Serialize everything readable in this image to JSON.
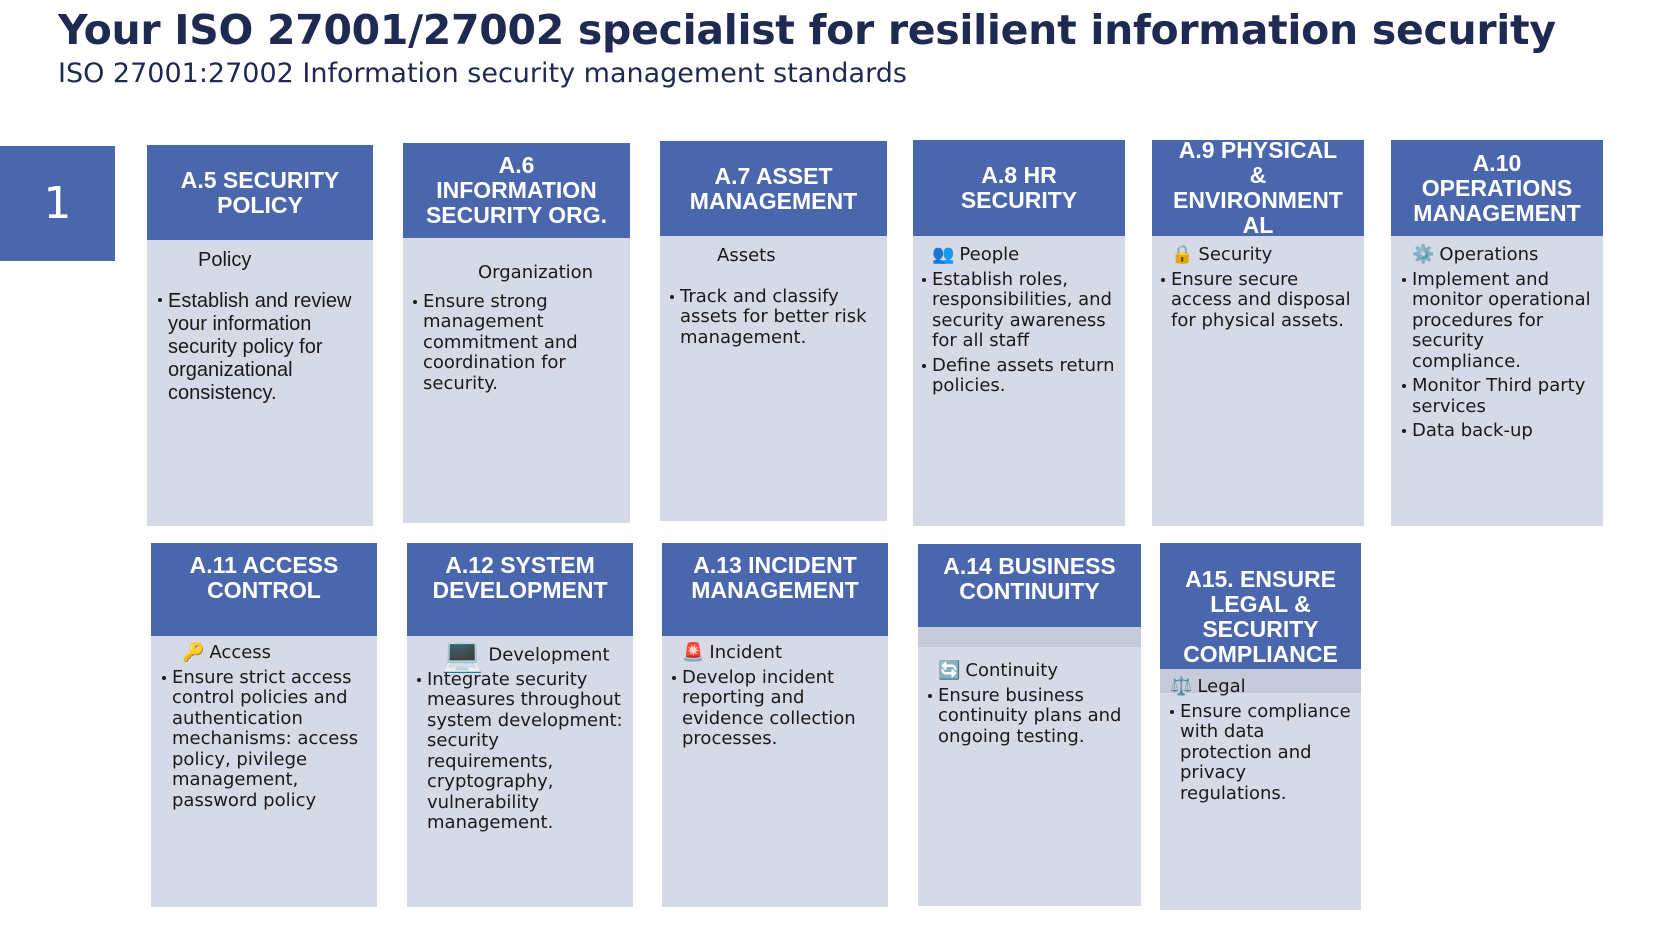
{
  "page": {
    "title": "Your ISO 27001/27002 specialist for resilient information security",
    "subtitle": "ISO 27001:27002 Information security management standards",
    "slide_number": "1"
  },
  "colors": {
    "title": "#1f2a52",
    "header_bg": "#4a66ad",
    "card_bg": "#d6d9e6",
    "text": "#1a1a1a"
  },
  "cards": {
    "a5": {
      "heading": [
        "A.5 SECURITY",
        "POLICY"
      ],
      "sub": "Policy",
      "icon": "",
      "bullets": [
        "Establish and review your information security policy for organizational consistency."
      ]
    },
    "a6": {
      "heading": [
        "A.6",
        "INFORMATION",
        "SECURITY ORG."
      ],
      "sub": "Organization",
      "icon": "",
      "bullets": [
        "Ensure strong management commitment and coordination for security."
      ]
    },
    "a7": {
      "heading": [
        "A.7 ASSET",
        "MANAGEMENT"
      ],
      "sub": "Assets",
      "icon": "",
      "bullets": [
        "Track and classify assets for better risk management."
      ]
    },
    "a8": {
      "heading": [
        "A.8 HR",
        "SECURITY"
      ],
      "sub": "People",
      "icon": "👥",
      "bullets": [
        "Establish roles, responsibilities, and security awareness for all staff",
        "Define assets return policies."
      ]
    },
    "a9": {
      "heading": [
        "A.9 PHYSICAL",
        "&",
        "ENVIRONMENT",
        "AL"
      ],
      "sub": "Security",
      "icon": "🔒",
      "bullets": [
        "Ensure secure access and disposal for physical assets."
      ]
    },
    "a10": {
      "heading": [
        "A.10",
        "OPERATIONS",
        "MANAGEMENT"
      ],
      "sub": "Operations",
      "icon": "⚙️",
      "bullets": [
        "Implement and monitor operational procedures for security compliance.",
        "Monitor Third party services",
        "Data back-up"
      ]
    },
    "a11": {
      "heading": [
        "A.11 ACCESS",
        "CONTROL"
      ],
      "sub": "Access",
      "icon": "🔑",
      "bullets": [
        "Ensure strict access control policies and authentication mechanisms: access policy, pivilege management, password policy"
      ]
    },
    "a12": {
      "heading": [
        "A.12 SYSTEM",
        "DEVELOPMENT"
      ],
      "sub": "Development",
      "icon": "💻",
      "bullets": [
        "Integrate security measures throughout system development: security requirements, cryptography, vulnerability management."
      ]
    },
    "a13": {
      "heading": [
        "A.13 INCIDENT",
        "MANAGEMENT"
      ],
      "sub": "Incident",
      "icon": "🚨",
      "bullets": [
        "Develop incident reporting and evidence collection processes."
      ]
    },
    "a14": {
      "heading": [
        "A.14 BUSINESS",
        "CONTINUITY"
      ],
      "sub": "Continuity",
      "icon": "🔄",
      "bullets": [
        "Ensure business continuity plans and ongoing testing."
      ]
    },
    "a15": {
      "heading": [
        "A15. ENSURE",
        "LEGAL &",
        "SECURITY",
        "COMPLIANCE"
      ],
      "sub": "Legal",
      "icon": "⚖️",
      "bullets": [
        "Ensure compliance with data protection and privacy regulations."
      ]
    }
  }
}
